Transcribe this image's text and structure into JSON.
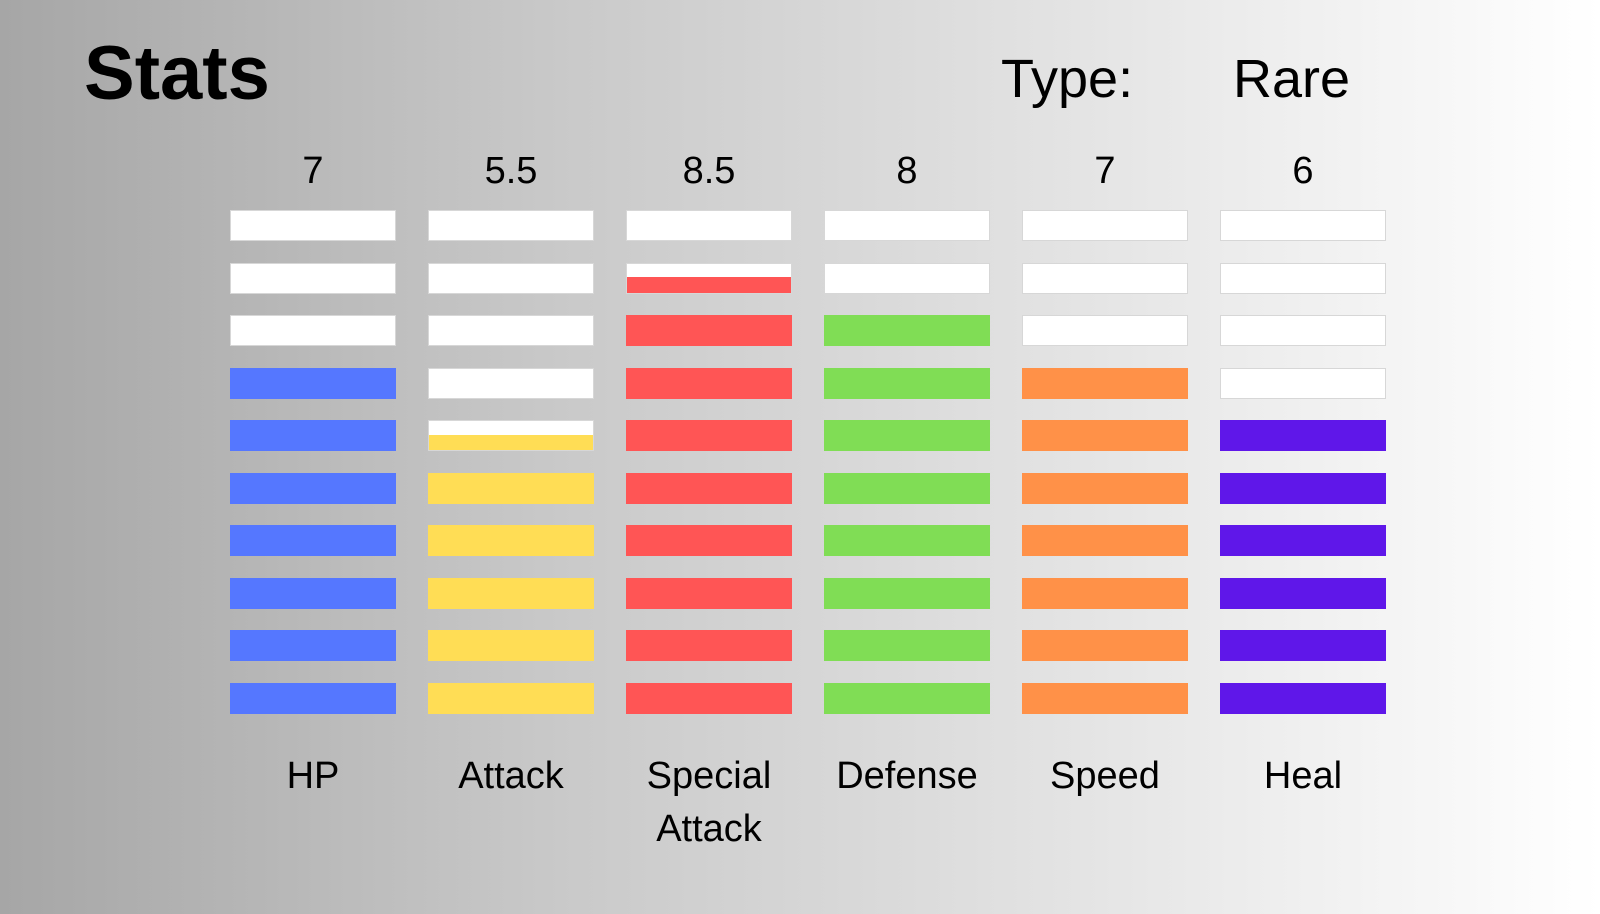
{
  "header": {
    "title": "Stats",
    "type_label": "Type:",
    "type_value": "Rare"
  },
  "chart_data": {
    "type": "bar",
    "max_value": 10,
    "categories": [
      "HP",
      "Attack",
      "Special Attack",
      "Defense",
      "Speed",
      "Heal"
    ],
    "value_labels": [
      "7",
      "5.5",
      "8.5",
      "8",
      "7",
      "6"
    ],
    "values": [
      7,
      5.5,
      8.5,
      8,
      7,
      6
    ],
    "colors": [
      "#5577ff",
      "#ffdd55",
      "#ff5555",
      "#80dd55",
      "#ff9148",
      "#5f17e9"
    ]
  }
}
